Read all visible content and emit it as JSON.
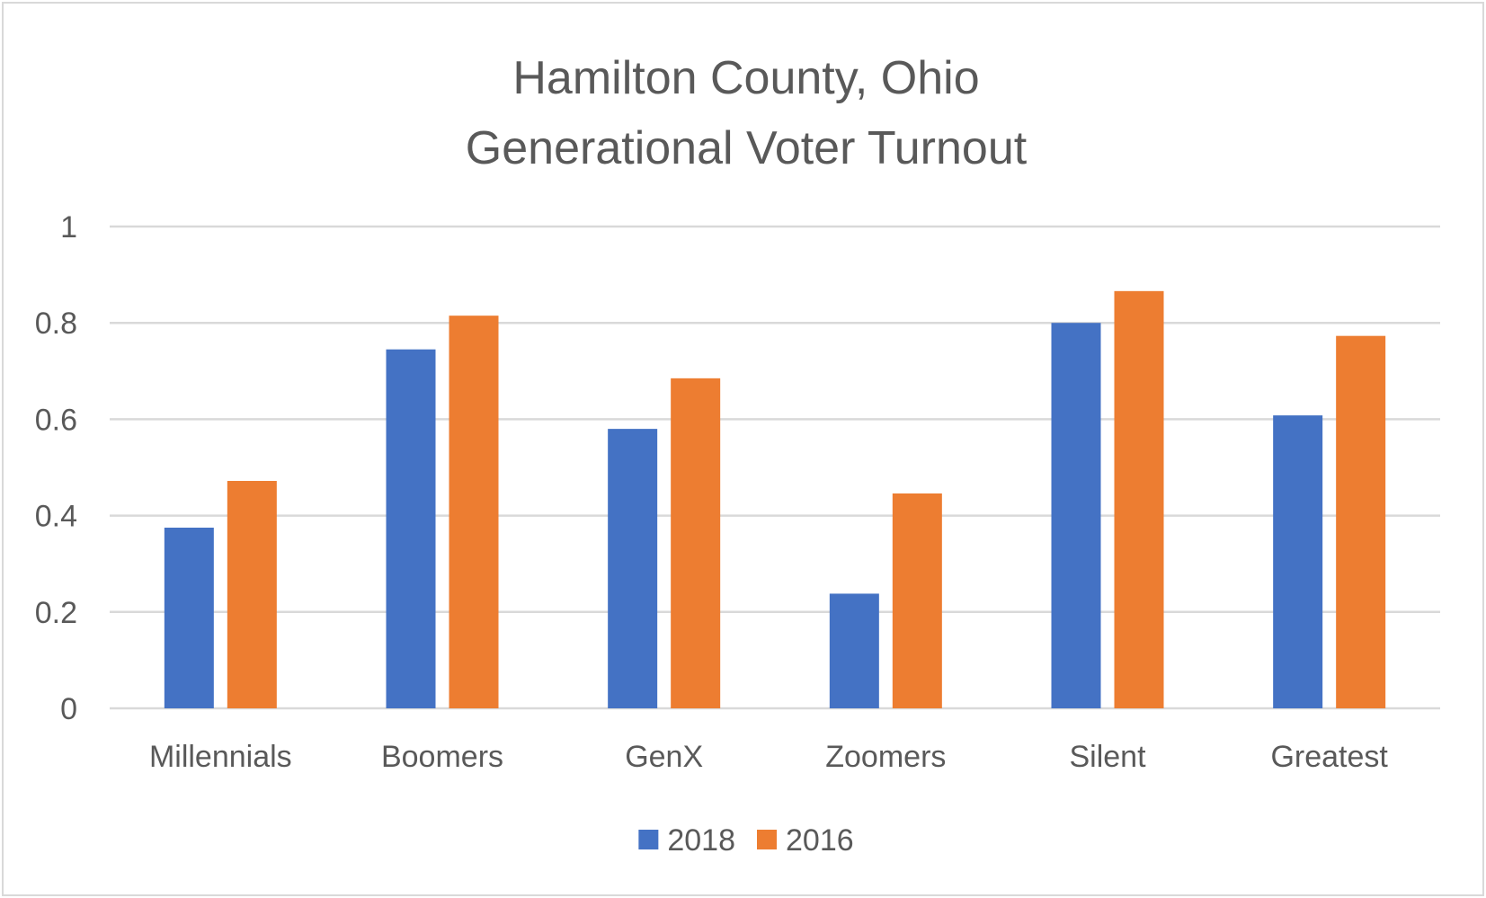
{
  "chart_data": {
    "type": "bar",
    "title_lines": [
      "Hamilton County, Ohio",
      "Generational Voter Turnout"
    ],
    "categories": [
      "Millennials",
      "Boomers",
      "GenX",
      "Zoomers",
      "Silent",
      "Greatest"
    ],
    "series": [
      {
        "name": "2018",
        "color": "#4472c4",
        "values": [
          0.375,
          0.745,
          0.58,
          0.238,
          0.8,
          0.608
        ]
      },
      {
        "name": "2016",
        "color": "#ed7d31",
        "values": [
          0.472,
          0.815,
          0.685,
          0.446,
          0.866,
          0.773
        ]
      }
    ],
    "ylim": [
      0,
      1
    ],
    "yticks": [
      0,
      0.2,
      0.4,
      0.6,
      0.8,
      1
    ],
    "ytick_labels": [
      "0",
      "0.2",
      "0.4",
      "0.6",
      "0.8",
      "1"
    ],
    "grid": true,
    "legend_position": "bottom"
  }
}
